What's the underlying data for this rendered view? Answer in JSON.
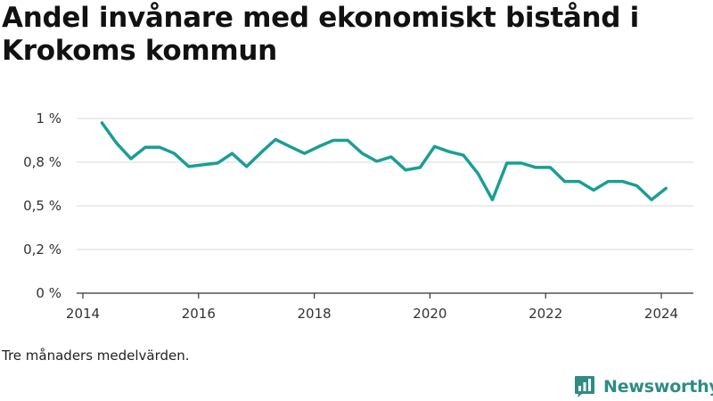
{
  "chart_data": {
    "type": "line",
    "title": "Andel invånare med ekonomiskt bistånd i Krokoms kommun",
    "note": "Tre månaders medelvärden.",
    "y_unit": "%",
    "ylim": [
      0,
      1.0
    ],
    "y_ticks": [
      0,
      0.25,
      0.5,
      0.75,
      1.0
    ],
    "y_tick_labels": [
      "0 %",
      "0,2 %",
      "0,5 %",
      "0,8 %",
      "1 %"
    ],
    "xlim": [
      2014,
      2024.5
    ],
    "x_ticks": [
      2014,
      2016,
      2018,
      2020,
      2022,
      2024
    ],
    "x_tick_labels": [
      "2014",
      "2016",
      "2018",
      "2020",
      "2022",
      "2024"
    ],
    "grid": true,
    "color": "#1a9e96",
    "series": [
      {
        "x": [
          2014.33,
          2014.58,
          2014.83,
          2015.08,
          2015.33,
          2015.58,
          2015.83,
          2016.08,
          2016.33,
          2016.58,
          2016.83,
          2017.08,
          2017.33,
          2017.58,
          2017.83,
          2018.08,
          2018.33,
          2018.58,
          2018.83,
          2019.08,
          2019.33,
          2019.58,
          2019.83,
          2020.08,
          2020.33,
          2020.58,
          2020.83,
          2021.08,
          2021.33,
          2021.58,
          2021.83,
          2022.08,
          2022.33,
          2022.58,
          2022.83,
          2023.08,
          2023.33,
          2023.58,
          2023.83,
          2024.08
        ],
        "y": [
          0.975,
          0.86,
          0.77,
          0.835,
          0.835,
          0.8,
          0.725,
          0.735,
          0.745,
          0.8,
          0.725,
          0.805,
          0.88,
          0.84,
          0.8,
          0.84,
          0.875,
          0.875,
          0.8,
          0.755,
          0.78,
          0.705,
          0.72,
          0.84,
          0.81,
          0.79,
          0.685,
          0.535,
          0.745,
          0.745,
          0.72,
          0.72,
          0.64,
          0.64,
          0.59,
          0.64,
          0.64,
          0.615,
          0.535,
          0.6
        ]
      }
    ]
  },
  "footer": {
    "brand": "Newsworthy",
    "brand_color": "#2f8c85",
    "brand_icon": "bar-chart-speech-bubble-icon"
  }
}
